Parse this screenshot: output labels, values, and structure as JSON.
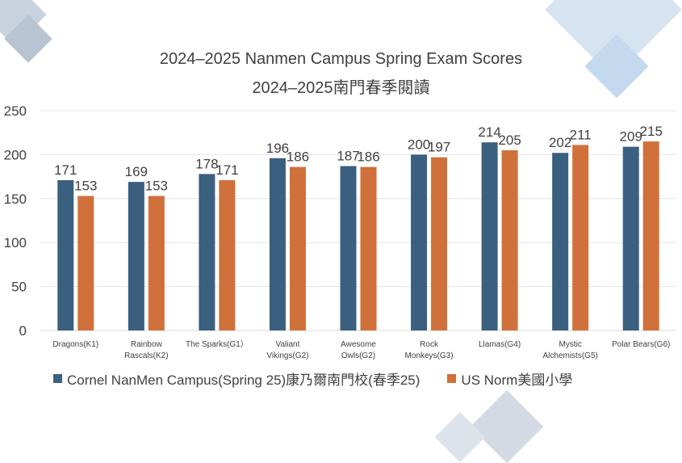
{
  "chart_data": {
    "type": "bar",
    "title": "2024–2025 Nanmen Campus Spring Exam Scores",
    "subtitle": "2024–2025南門春季閱讀",
    "categories": [
      [
        "Dragons(K1)"
      ],
      [
        "Rainbow",
        "Rascals(K2)"
      ],
      [
        "The Sparks(G1）"
      ],
      [
        "Valiant",
        "Vikings(G2)"
      ],
      [
        "Awesome",
        "Owls(G2)"
      ],
      [
        "Rock",
        "Monkeys(G3)"
      ],
      [
        "Llamas(G4)"
      ],
      [
        "Mystic",
        "Alchemists(G5)"
      ],
      [
        "Polar Bears(G6)"
      ]
    ],
    "series": [
      {
        "name": "Cornel NanMen Campus(Spring 25)康乃爾南門校(春季25)",
        "color": "#3b5f7f",
        "values": [
          171,
          169,
          178,
          196,
          187,
          200,
          214,
          202,
          209
        ]
      },
      {
        "name": "US Norm美國小學",
        "color": "#d0703a",
        "values": [
          153,
          153,
          171,
          186,
          186,
          197,
          205,
          211,
          215
        ]
      }
    ],
    "ylim": [
      0,
      250
    ],
    "yticks": [
      0,
      50,
      100,
      150,
      200,
      250
    ],
    "grid": true,
    "legend_position": "bottom",
    "data_labels": true
  }
}
